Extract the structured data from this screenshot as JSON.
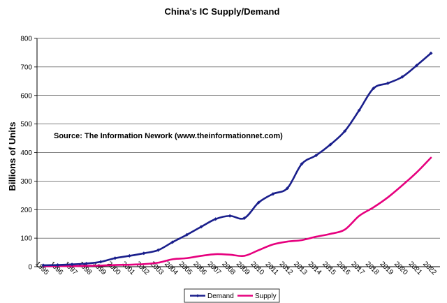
{
  "chart_data": {
    "type": "line",
    "title": "China's IC Supply/Demand",
    "ylabel": "Billions of Units",
    "xlabel": "",
    "annotation": "Source: The Information Nework (www.theinformationnet.com)",
    "ylim": [
      0,
      800
    ],
    "yticks": [
      0,
      100,
      200,
      300,
      400,
      500,
      600,
      700,
      800
    ],
    "categories": [
      "1995",
      "1996",
      "1997",
      "1998",
      "1999",
      "2000",
      "2001",
      "2002",
      "2003",
      "2004",
      "2005",
      "2006",
      "2007",
      "2008",
      "2009",
      "2010",
      "2011",
      "2012",
      "2013",
      "2014",
      "2015",
      "2016",
      "2017",
      "2018",
      "2019",
      "2020",
      "2021",
      "2022"
    ],
    "grid": "horizontal",
    "legend_position": "bottom",
    "series": [
      {
        "name": "Demand",
        "color": "#1a1f8c",
        "marker": "diamond",
        "values": [
          5,
          6,
          8,
          11,
          17,
          30,
          38,
          47,
          58,
          86,
          112,
          140,
          167,
          178,
          170,
          225,
          255,
          275,
          360,
          390,
          428,
          475,
          548,
          625,
          643,
          665,
          705,
          748
        ]
      },
      {
        "name": "Supply",
        "color": "#e6007e",
        "marker": "none",
        "values": [
          1,
          2,
          2,
          3,
          4,
          6,
          7,
          9,
          14,
          26,
          30,
          38,
          44,
          42,
          38,
          58,
          78,
          88,
          93,
          105,
          115,
          130,
          178,
          208,
          243,
          285,
          330,
          382
        ]
      }
    ]
  }
}
